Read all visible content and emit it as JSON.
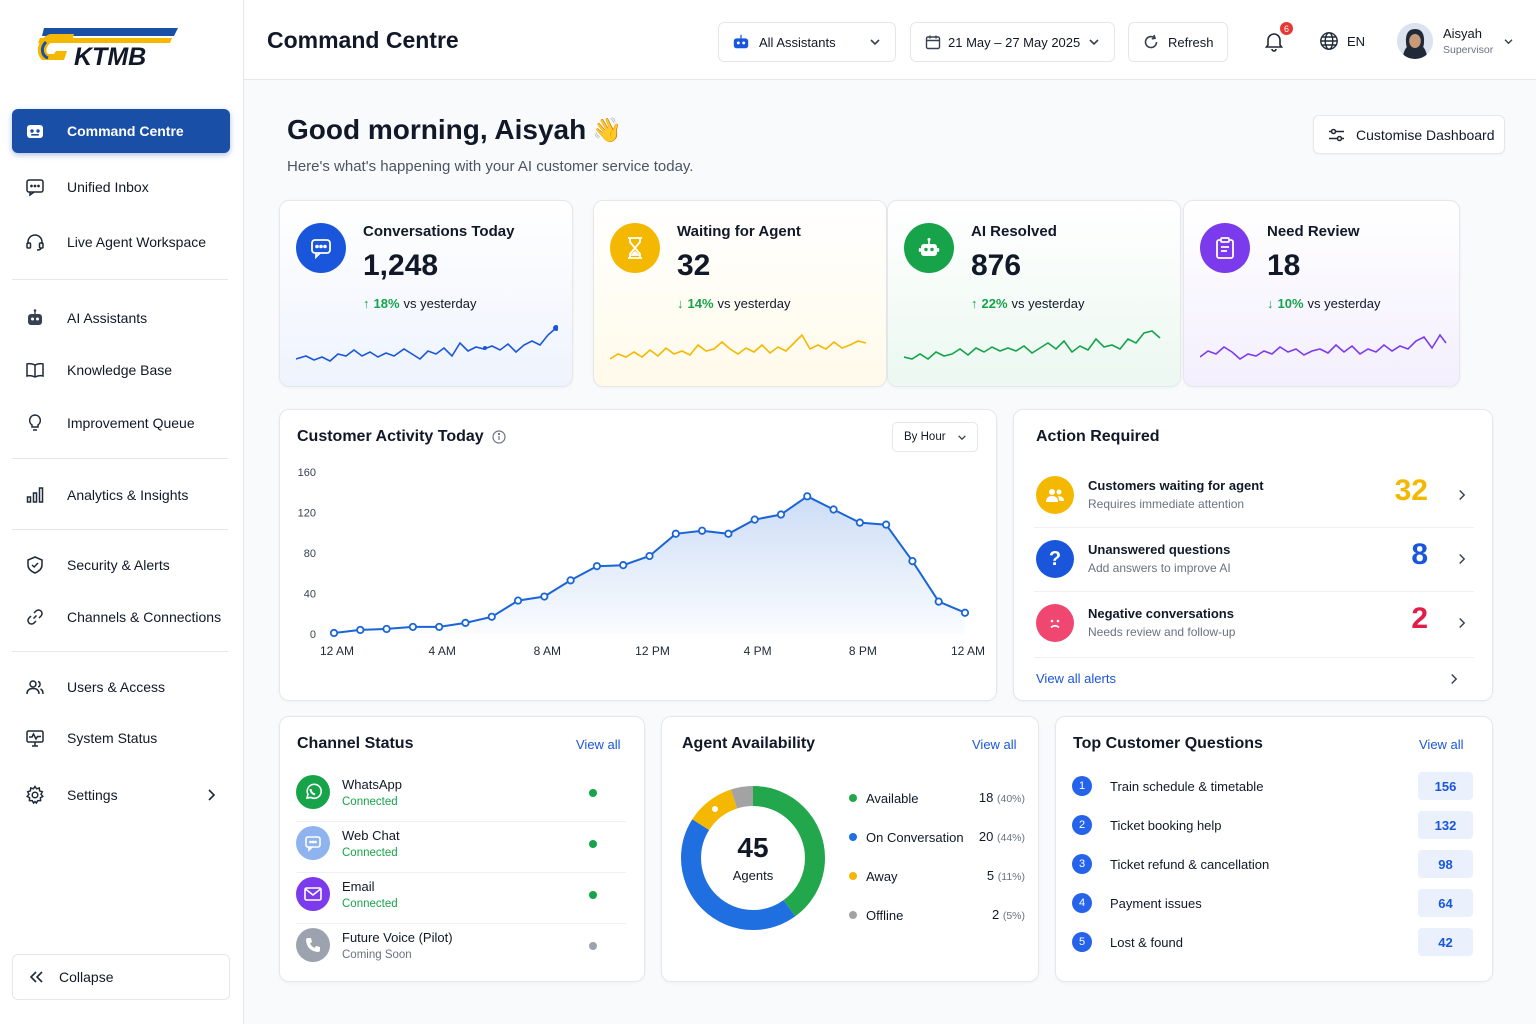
{
  "brand": {
    "logo_text": "KTMB"
  },
  "sidebar": {
    "items": [
      {
        "label": "Command Centre"
      },
      {
        "label": "Unified Inbox"
      },
      {
        "label": "Live Agent Workspace"
      },
      {
        "label": "AI Assistants"
      },
      {
        "label": "Knowledge Base"
      },
      {
        "label": "Improvement Queue"
      },
      {
        "label": "Analytics & Insights"
      },
      {
        "label": "Security & Alerts"
      },
      {
        "label": "Channels & Connections"
      },
      {
        "label": "Users & Access"
      },
      {
        "label": "System Status"
      },
      {
        "label": "Settings"
      }
    ],
    "collapse_label": "Collapse"
  },
  "header": {
    "title": "Command Centre",
    "assistant_select": "All Assistants",
    "date_range": "21 May – 27 May 2025",
    "refresh_label": "Refresh",
    "notifications_count": "6",
    "language": "EN",
    "user_name": "Aisyah",
    "user_role": "Supervisor"
  },
  "greeting": {
    "title": "Good morning, Aisyah",
    "emoji": "👋",
    "subtitle": "Here's what's happening with your AI customer service today.",
    "customise_label": "Customise Dashboard"
  },
  "stats": [
    {
      "label": "Conversations Today",
      "value": "1,248",
      "delta": "18%",
      "delta_text": "vs yesterday",
      "color": "#1a56db"
    },
    {
      "label": "Waiting for Agent",
      "value": "32",
      "delta": "14%",
      "delta_text": "vs yesterday",
      "color": "#f5b800"
    },
    {
      "label": "AI Resolved",
      "value": "876",
      "delta": "22%",
      "delta_text": "vs yesterday",
      "color": "#16a34a"
    },
    {
      "label": "Need Review",
      "value": "18",
      "delta": "10%",
      "delta_text": "vs yesterday",
      "color": "#7c3aed"
    }
  ],
  "activity": {
    "title": "Customer Activity Today",
    "granularity": "By Hour"
  },
  "chart_data": {
    "type": "area",
    "title": "Customer Activity Today",
    "x_tick_labels": [
      "12 AM",
      "4 AM",
      "8 AM",
      "12 PM",
      "4 PM",
      "8 PM",
      "12 AM"
    ],
    "y_ticks": [
      0,
      40,
      80,
      120,
      160
    ],
    "ylim": [
      0,
      160
    ],
    "x": [
      "12 AM",
      "1 AM",
      "2 AM",
      "3 AM",
      "4 AM",
      "5 AM",
      "6 AM",
      "7 AM",
      "8 AM",
      "9 AM",
      "10 AM",
      "11 AM",
      "12 PM",
      "1 PM",
      "2 PM",
      "3 PM",
      "4 PM",
      "5 PM",
      "6 PM",
      "7 PM",
      "8 PM",
      "9 PM",
      "10 PM",
      "11 PM",
      "12 AM"
    ],
    "values": [
      1,
      4,
      5,
      7,
      7,
      11,
      17,
      33,
      37,
      53,
      67,
      68,
      77,
      99,
      102,
      99,
      113,
      118,
      136,
      123,
      110,
      108,
      72,
      32,
      21
    ],
    "grid": false,
    "color": "#1a65d6"
  },
  "action_required": {
    "title": "Action Required",
    "items": [
      {
        "title": "Customers waiting for agent",
        "subtitle": "Requires immediate attention",
        "count": "32",
        "color": "#f5b800"
      },
      {
        "title": "Unanswered questions",
        "subtitle": "Add answers to improve AI",
        "count": "8",
        "color": "#1a56db"
      },
      {
        "title": "Negative conversations",
        "subtitle": "Needs review and follow-up",
        "count": "2",
        "color": "#e11d48"
      }
    ],
    "view_all": "View all alerts"
  },
  "channel_status": {
    "title": "Channel Status",
    "view_all": "View all",
    "items": [
      {
        "name": "WhatsApp",
        "status": "Connected",
        "color": "#16a34a"
      },
      {
        "name": "Web Chat",
        "status": "Connected",
        "color": "#16a34a"
      },
      {
        "name": "Email",
        "status": "Connected",
        "color": "#16a34a"
      },
      {
        "name": "Future Voice (Pilot)",
        "status": "Coming Soon",
        "color": "#9ca3af"
      }
    ]
  },
  "agent_availability": {
    "title": "Agent Availability",
    "view_all": "View all",
    "total": "45",
    "total_label": "Agents",
    "items": [
      {
        "label": "Available",
        "count": "18",
        "pct": "(40%)",
        "value": 40,
        "color": "#22a74c"
      },
      {
        "label": "On Conversation",
        "count": "20",
        "pct": "(44%)",
        "value": 44,
        "color": "#1f6fe0"
      },
      {
        "label": "Away",
        "count": "5",
        "pct": "(11%)",
        "value": 11,
        "color": "#f5b800"
      },
      {
        "label": "Offline",
        "count": "2",
        "pct": "(5%)",
        "value": 5,
        "color": "#a3a3a3"
      }
    ]
  },
  "top_questions": {
    "title": "Top Customer Questions",
    "view_all": "View all",
    "items": [
      {
        "rank": "1",
        "question": "Train schedule & timetable",
        "count": "156"
      },
      {
        "rank": "2",
        "question": "Ticket booking help",
        "count": "132"
      },
      {
        "rank": "3",
        "question": "Ticket refund & cancellation",
        "count": "98"
      },
      {
        "rank": "4",
        "question": "Payment issues",
        "count": "64"
      },
      {
        "rank": "5",
        "question": "Lost & found",
        "count": "42"
      }
    ]
  }
}
